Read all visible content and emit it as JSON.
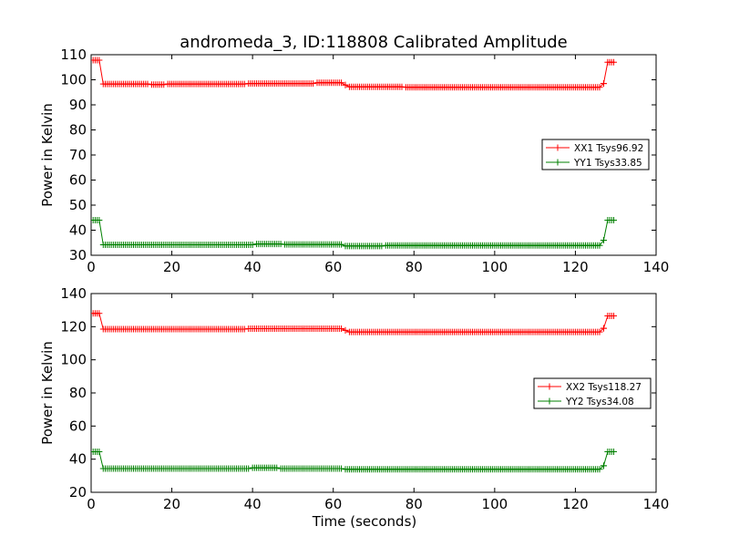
{
  "figure": {
    "title": "andromeda_3, ID:118808 Calibrated Amplitude",
    "xlabel": "Time (seconds)"
  },
  "chart_data": [
    {
      "type": "line",
      "ylabel": "Power in Kelvin",
      "xlim": [
        0,
        140
      ],
      "ylim": [
        30,
        110
      ],
      "xticks": [
        0,
        20,
        40,
        60,
        80,
        100,
        120,
        140
      ],
      "yticks": [
        30,
        40,
        50,
        60,
        70,
        80,
        90,
        100,
        110
      ],
      "grid": false,
      "legend": "center-right",
      "show_xlabel": false,
      "series": [
        {
          "name": "XX1 Tsys96.92",
          "color": "#ff0000",
          "marker": "+",
          "segments": [
            {
              "x0": 0.5,
              "x1": 2.0,
              "y": 107.8
            },
            {
              "x0": 3.0,
              "x1": 14.0,
              "y": 98.3
            },
            {
              "x0": 15.0,
              "x1": 18.0,
              "y": 98.1
            },
            {
              "x0": 19.0,
              "x1": 38.0,
              "y": 98.3
            },
            {
              "x0": 39.0,
              "x1": 55.0,
              "y": 98.5
            },
            {
              "x0": 56.0,
              "x1": 62.0,
              "y": 98.8
            },
            {
              "x0": 63.0,
              "x1": 63.0,
              "y": 97.9
            },
            {
              "x0": 64.0,
              "x1": 77.0,
              "y": 97.2
            },
            {
              "x0": 78.0,
              "x1": 126.0,
              "y": 97.0
            },
            {
              "x0": 127.0,
              "x1": 127.0,
              "y": 98.5
            },
            {
              "x0": 128.0,
              "x1": 129.5,
              "y": 107.0
            }
          ]
        },
        {
          "name": "YY1 Tsys33.85",
          "color": "#008000",
          "marker": "+",
          "segments": [
            {
              "x0": 0.5,
              "x1": 2.0,
              "y": 44.0
            },
            {
              "x0": 3.0,
              "x1": 40.0,
              "y": 34.2
            },
            {
              "x0": 41.0,
              "x1": 47.0,
              "y": 34.5
            },
            {
              "x0": 48.0,
              "x1": 62.0,
              "y": 34.3
            },
            {
              "x0": 63.0,
              "x1": 72.0,
              "y": 33.7
            },
            {
              "x0": 73.0,
              "x1": 126.0,
              "y": 33.9
            },
            {
              "x0": 127.0,
              "x1": 127.0,
              "y": 36.0
            },
            {
              "x0": 128.0,
              "x1": 129.5,
              "y": 44.0
            }
          ]
        }
      ]
    },
    {
      "type": "line",
      "ylabel": "Power in Kelvin",
      "xlim": [
        0,
        140
      ],
      "ylim": [
        20,
        140
      ],
      "xticks": [
        0,
        20,
        40,
        60,
        80,
        100,
        120,
        140
      ],
      "yticks": [
        20,
        40,
        60,
        80,
        100,
        120,
        140
      ],
      "grid": false,
      "legend": "center-right",
      "show_xlabel": true,
      "series": [
        {
          "name": "XX2 Tsys118.27",
          "color": "#ff0000",
          "marker": "+",
          "segments": [
            {
              "x0": 0.5,
              "x1": 2.0,
              "y": 128.0
            },
            {
              "x0": 3.0,
              "x1": 38.0,
              "y": 118.5
            },
            {
              "x0": 39.0,
              "x1": 62.0,
              "y": 118.8
            },
            {
              "x0": 63.0,
              "x1": 63.0,
              "y": 117.8
            },
            {
              "x0": 64.0,
              "x1": 126.0,
              "y": 116.8
            },
            {
              "x0": 127.0,
              "x1": 127.0,
              "y": 119.0
            },
            {
              "x0": 128.0,
              "x1": 129.5,
              "y": 126.5
            }
          ]
        },
        {
          "name": "YY2 Tsys34.08",
          "color": "#008000",
          "marker": "+",
          "segments": [
            {
              "x0": 0.5,
              "x1": 2.0,
              "y": 44.5
            },
            {
              "x0": 3.0,
              "x1": 39.0,
              "y": 34.3
            },
            {
              "x0": 40.0,
              "x1": 46.0,
              "y": 34.8
            },
            {
              "x0": 47.0,
              "x1": 62.0,
              "y": 34.3
            },
            {
              "x0": 63.0,
              "x1": 126.0,
              "y": 33.9
            },
            {
              "x0": 127.0,
              "x1": 127.0,
              "y": 36.0
            },
            {
              "x0": 128.0,
              "x1": 129.5,
              "y": 44.5
            }
          ]
        }
      ]
    }
  ]
}
